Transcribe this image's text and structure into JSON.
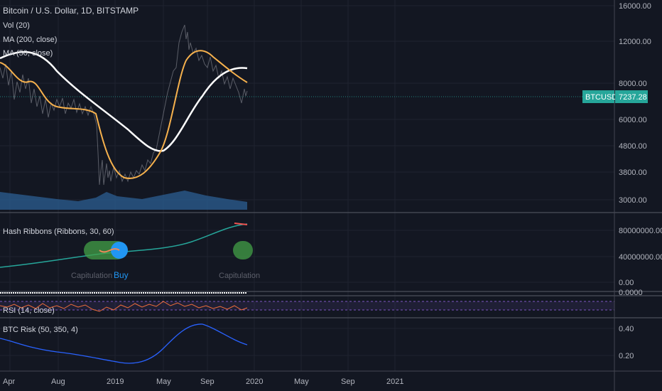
{
  "header": {
    "symbol_title": "Bitcoin / U.S. Dollar, 1D, BITSTAMP",
    "indicators": [
      "Vol (20)",
      "MA (200, close)",
      "MA (50, close)"
    ]
  },
  "price_axis": {
    "ticks": [
      "16000.00",
      "12000.00",
      "8000.00",
      "6000.00",
      "4800.00",
      "3800.00",
      "3000.00"
    ]
  },
  "price_tag": {
    "symbol": "BTCUSD",
    "value": "7237.28",
    "color": "#26a69a"
  },
  "hash_ribbons": {
    "title": "Hash Ribbons (Ribbons, 30, 60)",
    "axis": [
      "80000000.00",
      "40000000.00",
      "0.00"
    ],
    "labels": {
      "capitulation_1": "Capitulation",
      "buy": "Buy",
      "capitulation_2": "Capitulation"
    }
  },
  "mini_pane": {
    "axis": [
      "0.0000"
    ]
  },
  "rsi": {
    "title": "RSI (14, close)"
  },
  "btc_risk": {
    "title": "BTC Risk (50, 350, 4)",
    "axis": [
      "0.40",
      "0.20"
    ]
  },
  "time_axis": {
    "ticks": [
      "Apr",
      "Aug",
      "2019",
      "May",
      "Sep",
      "2020",
      "May",
      "Sep",
      "2021"
    ]
  },
  "colors": {
    "background": "#131722",
    "ma200": "#ffffff",
    "ma50": "#f6b14d",
    "volume": "#2a5a8c",
    "hash_line": "#26a69a",
    "buy": "#2196f3",
    "risk_line": "#2962ff",
    "rsi_line": "#f06e3c",
    "rsi_band": "#7e57c2"
  }
}
